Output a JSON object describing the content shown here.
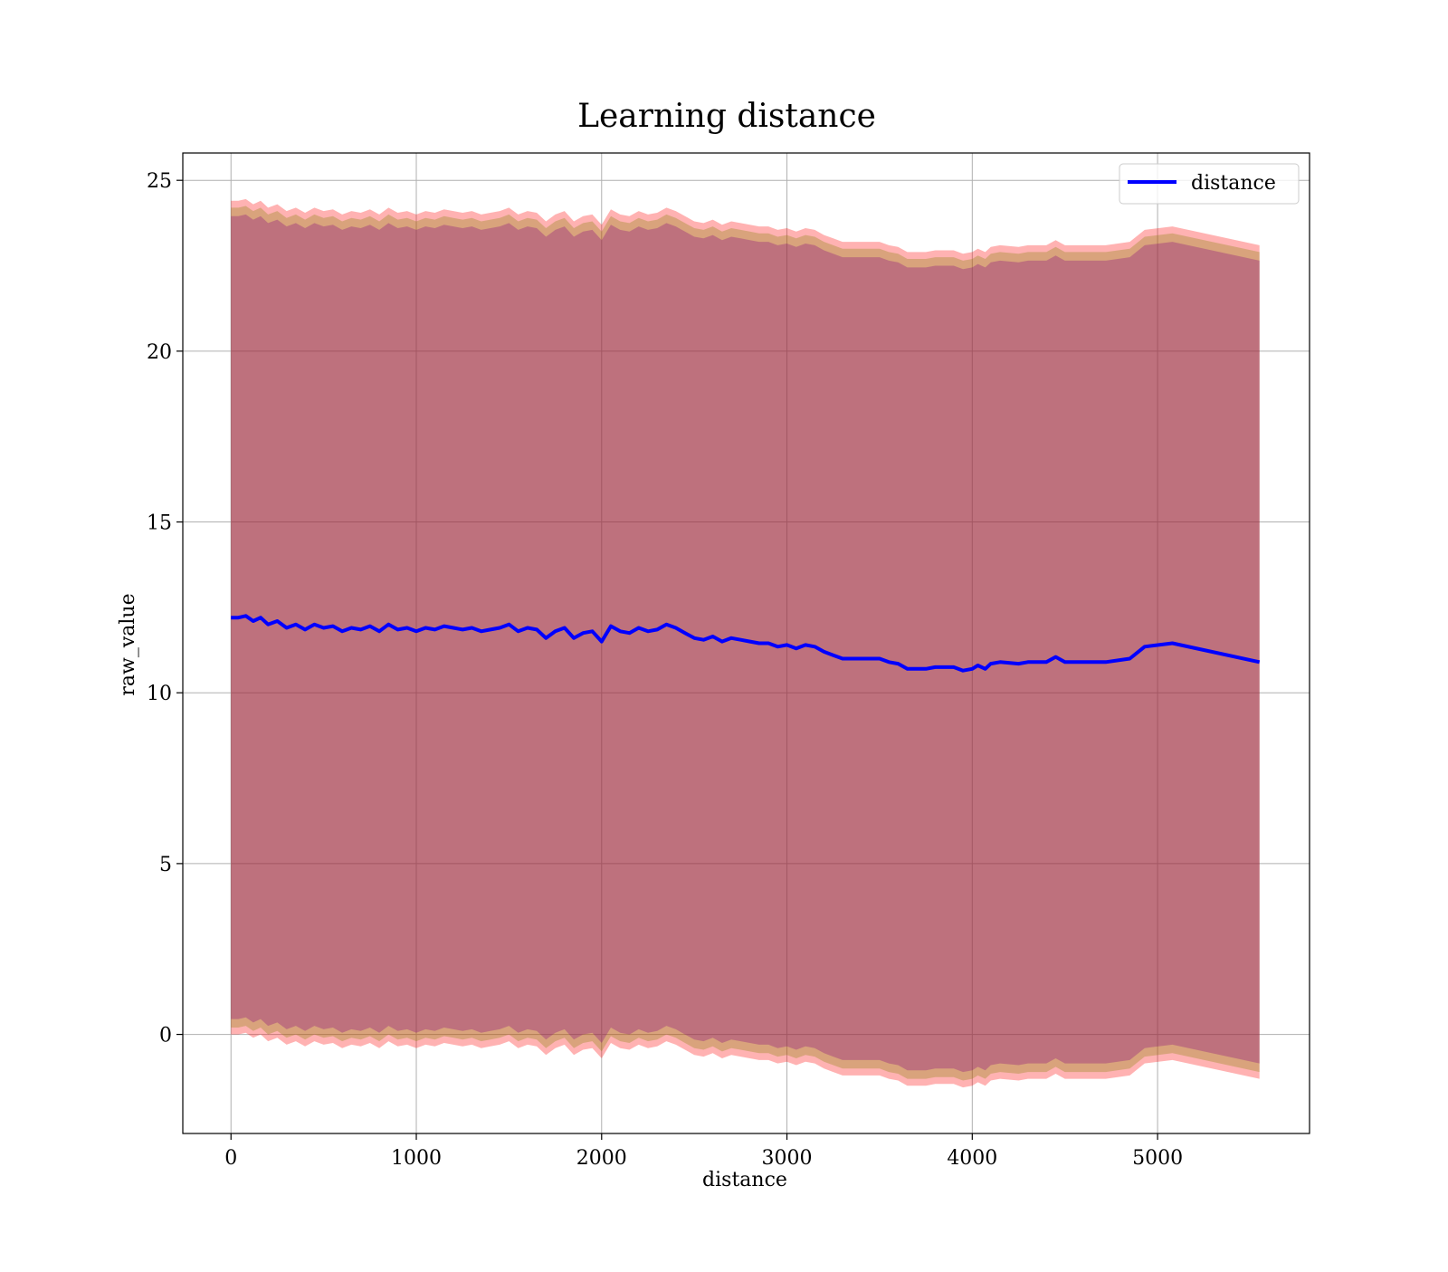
{
  "chart_data": {
    "type": "area",
    "title": "Learning distance",
    "xlabel": "distance",
    "ylabel": "raw_value",
    "xlim": [
      -260,
      5820
    ],
    "ylim": [
      -2.9,
      25.8
    ],
    "xticks": [
      0,
      1000,
      2000,
      3000,
      4000,
      5000
    ],
    "xtick_labels": [
      "0",
      "1000",
      "2000",
      "3000",
      "4000",
      "5000"
    ],
    "yticks": [
      0,
      5,
      10,
      15,
      20,
      25
    ],
    "ytick_labels": [
      "0",
      "5",
      "10",
      "15",
      "20",
      "25"
    ],
    "grid": true,
    "legend": {
      "placement": "top-right",
      "entries": [
        "distance"
      ]
    },
    "colors": {
      "line": "#0000ff",
      "outer_band": "#ff0000",
      "middle_band": "#808000",
      "inner_band": "#800080",
      "grid": "#b0b0b0"
    },
    "series": [
      {
        "name": "distance",
        "x": [
          0,
          40,
          80,
          120,
          160,
          200,
          250,
          300,
          350,
          400,
          450,
          500,
          550,
          600,
          650,
          700,
          750,
          800,
          850,
          900,
          950,
          1000,
          1050,
          1100,
          1150,
          1200,
          1250,
          1300,
          1350,
          1400,
          1450,
          1500,
          1550,
          1600,
          1650,
          1700,
          1750,
          1800,
          1850,
          1900,
          1950,
          2000,
          2050,
          2100,
          2150,
          2200,
          2250,
          2300,
          2350,
          2400,
          2450,
          2500,
          2550,
          2600,
          2650,
          2700,
          2750,
          2800,
          2850,
          2900,
          2950,
          3000,
          3050,
          3100,
          3150,
          3200,
          3250,
          3300,
          3400,
          3500,
          3550,
          3600,
          3650,
          3700,
          3750,
          3800,
          3900,
          3950,
          4000,
          4030,
          4070,
          4100,
          4150,
          4250,
          4300,
          4400,
          4450,
          4500,
          4600,
          4720,
          4850,
          4930,
          5080,
          5550
        ],
        "y": [
          12.2,
          12.2,
          12.25,
          12.1,
          12.2,
          12.0,
          12.1,
          11.9,
          12.0,
          11.85,
          12.0,
          11.9,
          11.95,
          11.8,
          11.9,
          11.85,
          11.95,
          11.8,
          12.0,
          11.85,
          11.9,
          11.8,
          11.9,
          11.85,
          11.95,
          11.9,
          11.85,
          11.9,
          11.8,
          11.85,
          11.9,
          12.0,
          11.8,
          11.9,
          11.85,
          11.6,
          11.8,
          11.9,
          11.6,
          11.75,
          11.8,
          11.5,
          11.95,
          11.8,
          11.75,
          11.9,
          11.8,
          11.85,
          12.0,
          11.9,
          11.75,
          11.6,
          11.55,
          11.65,
          11.5,
          11.6,
          11.55,
          11.5,
          11.45,
          11.45,
          11.35,
          11.4,
          11.3,
          11.4,
          11.35,
          11.2,
          11.1,
          11.0,
          11.0,
          11.0,
          10.9,
          10.85,
          10.7,
          10.7,
          10.7,
          10.75,
          10.75,
          10.65,
          10.7,
          10.8,
          10.7,
          10.85,
          10.9,
          10.85,
          10.9,
          10.9,
          11.05,
          10.9,
          10.9,
          10.9,
          11.0,
          11.35,
          11.45,
          10.9
        ]
      }
    ],
    "bands": {
      "inner_half_width": 11.75,
      "middle_half_width": 12.0,
      "outer_half_width": 12.2
    }
  }
}
